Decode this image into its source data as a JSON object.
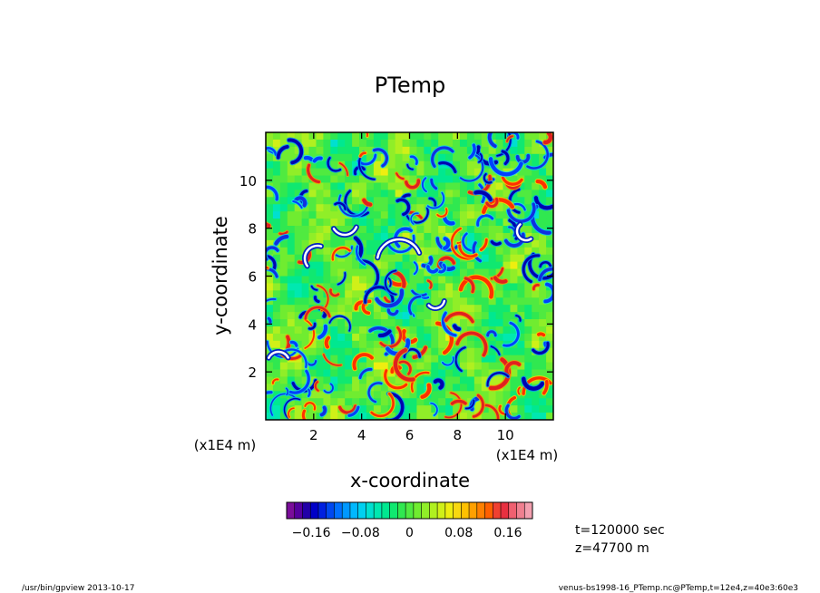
{
  "chart_data": {
    "type": "heatmap",
    "title": "PTemp",
    "xlabel": "x-coordinate",
    "ylabel": "y-coordinate",
    "x_unit": "(x1E4 m)",
    "y_unit": "(x1E4 m)",
    "xlim": [
      0,
      12
    ],
    "ylim": [
      0,
      12
    ],
    "x_ticks": [
      2,
      4,
      6,
      8,
      10
    ],
    "y_ticks": [
      2,
      4,
      6,
      8,
      10
    ],
    "colorbar": {
      "range": [
        -0.2,
        0.2
      ],
      "tick_values": [
        -0.16,
        -0.08,
        0,
        0.08,
        0.16
      ],
      "tick_labels": [
        "−0.16",
        "−0.08",
        "0",
        "0.08",
        "0.16"
      ],
      "colors": [
        "#7a0d9a",
        "#55009e",
        "#2200a8",
        "#0000c8",
        "#0020e0",
        "#0048f0",
        "#0070ff",
        "#0098ff",
        "#00b8ff",
        "#00d0f0",
        "#00e0d0",
        "#00e8b0",
        "#00e890",
        "#10e870",
        "#30e850",
        "#50ea40",
        "#70ec30",
        "#90ee28",
        "#b0f020",
        "#d0f018",
        "#eeee10",
        "#f8d810",
        "#ffc000",
        "#ffa000",
        "#ff8000",
        "#ff6000",
        "#f04030",
        "#e83040",
        "#f06070",
        "#f08090",
        "#f4a0b0"
      ]
    },
    "annotations": [
      "t=120000 sec",
      "z=47700 m"
    ]
  },
  "footer": {
    "left": "/usr/bin/gpview   2013-10-17",
    "right": "venus-bs1998-16_PTemp.nc@PTemp,t=12e4,z=40e3:60e3"
  }
}
